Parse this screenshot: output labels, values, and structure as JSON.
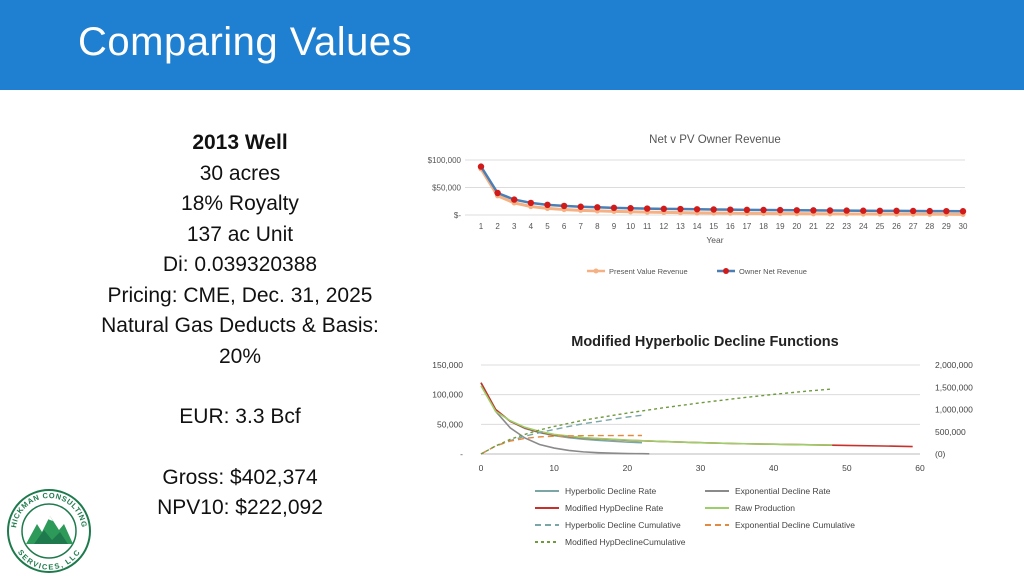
{
  "slide": {
    "title": "Comparing Values"
  },
  "well": {
    "heading": "2013 Well",
    "lines": [
      "30 acres",
      "18% Royalty",
      "137 ac Unit",
      "Di: 0.039320388",
      "Pricing: CME, Dec. 31, 2025",
      "Natural Gas Deducts & Basis:",
      "20%"
    ],
    "eur": "EUR: 3.3 Bcf",
    "gross": "Gross: $402,374",
    "npv": "NPV10: $222,092"
  },
  "logo": {
    "text_top": "HICKMAN CONSULTING",
    "text_bottom": "SERVICES, LLC"
  },
  "colors": {
    "banner": "#1f7fd1",
    "pv": "#f5b183",
    "owner_line": "#4a7eb5",
    "owner_marker": "#d11a1a"
  },
  "chart_data": [
    {
      "type": "line",
      "title": "Net v PV Owner Revenue",
      "xlabel": "Year",
      "ylabel": "",
      "x": [
        1,
        2,
        3,
        4,
        5,
        6,
        7,
        8,
        9,
        10,
        11,
        12,
        13,
        14,
        15,
        16,
        17,
        18,
        19,
        20,
        21,
        22,
        23,
        24,
        25,
        26,
        27,
        28,
        29,
        30
      ],
      "yticks": [
        "$100,000",
        "$50,000",
        "$-"
      ],
      "ylim": [
        0,
        100000
      ],
      "grid": true,
      "legend": "bottom",
      "series": [
        {
          "name": "Present Value Revenue",
          "values": [
            84000,
            35000,
            22000,
            15500,
            12000,
            10000,
            8500,
            7400,
            6500,
            5800,
            5200,
            4700,
            4300,
            3900,
            3600,
            3300,
            3000,
            2800,
            2600,
            2400,
            2200,
            2100,
            1900,
            1800,
            1700,
            1600,
            1500,
            1400,
            1300,
            1200
          ]
        },
        {
          "name": "Owner Net Revenue",
          "values": [
            88000,
            40000,
            28000,
            22000,
            18500,
            16500,
            15000,
            14000,
            13000,
            12300,
            11700,
            11200,
            10800,
            10400,
            10000,
            9700,
            9400,
            9100,
            8900,
            8600,
            8400,
            8200,
            8000,
            7800,
            7600,
            7500,
            7300,
            7100,
            7000,
            6800
          ]
        }
      ]
    },
    {
      "type": "line",
      "title": "Modified Hyperbolic Decline Functions",
      "xlabel": "",
      "ylabel": "",
      "xticks": [
        "0",
        "10",
        "20",
        "30",
        "40",
        "50",
        "60"
      ],
      "xlim": [
        0,
        60
      ],
      "yticks_left": [
        "150,000",
        "100,000",
        "50,000",
        "-"
      ],
      "ylim_left": [
        0,
        150000
      ],
      "yticks_right": [
        "2,000,000",
        "1,500,000",
        "1,000,000",
        "500,000",
        "(0)"
      ],
      "ylim_right": [
        0,
        2000000
      ],
      "grid": true,
      "legend": "bottom",
      "series": [
        {
          "name": "Hyperbolic Decline Rate",
          "axis": "left",
          "x": [
            0,
            2,
            4,
            6,
            8,
            10,
            12,
            14,
            16,
            18,
            20,
            22
          ],
          "values": [
            120000,
            75000,
            55000,
            43000,
            36000,
            31000,
            27500,
            25000,
            23000,
            21500,
            20000,
            19000
          ]
        },
        {
          "name": "Exponential Decline Rate",
          "axis": "left",
          "x": [
            0,
            2,
            4,
            6,
            8,
            10,
            12,
            14,
            16,
            18,
            20,
            22,
            23
          ],
          "values": [
            120000,
            72000,
            44000,
            27000,
            16000,
            10000,
            6000,
            3600,
            2200,
            1300,
            800,
            500,
            400
          ]
        },
        {
          "name": "Modified HypDecline Rate",
          "axis": "left",
          "x": [
            0,
            2,
            4,
            6,
            8,
            10,
            14,
            20,
            25,
            30,
            35,
            40,
            45,
            50,
            55,
            59
          ],
          "values": [
            120000,
            75000,
            55000,
            44000,
            37000,
            32000,
            27000,
            23000,
            21000,
            19000,
            17500,
            16500,
            15500,
            14500,
            13500,
            12500
          ]
        },
        {
          "name": "Raw Production",
          "axis": "left",
          "x": [
            0,
            2,
            4,
            6,
            8,
            10,
            14,
            20,
            25,
            30,
            35,
            40,
            45,
            48
          ],
          "values": [
            115000,
            72000,
            56000,
            45000,
            38000,
            33000,
            27500,
            23500,
            21000,
            19000,
            17500,
            16500,
            15500,
            15000
          ]
        },
        {
          "name": "Hyperbolic Decline Cumulative",
          "axis": "right",
          "x": [
            0,
            2,
            4,
            6,
            8,
            10,
            12,
            14,
            16,
            18,
            20,
            22
          ],
          "values": [
            0,
            180000,
            300000,
            400000,
            480000,
            550000,
            620000,
            680000,
            730000,
            780000,
            830000,
            870000
          ]
        },
        {
          "name": "Exponential Decline  Cumulative",
          "axis": "right",
          "x": [
            0,
            2,
            4,
            6,
            8,
            10,
            12,
            14,
            16,
            18,
            20,
            22
          ],
          "values": [
            0,
            180000,
            290000,
            350000,
            385000,
            400000,
            408000,
            412000,
            414000,
            415000,
            416000,
            416000
          ]
        },
        {
          "name": "Modified HypDeclineCumulative",
          "axis": "right",
          "x": [
            0,
            2,
            4,
            6,
            8,
            10,
            14,
            20,
            25,
            30,
            35,
            40,
            45,
            48
          ],
          "values": [
            0,
            180000,
            330000,
            440000,
            540000,
            620000,
            760000,
            920000,
            1040000,
            1150000,
            1250000,
            1340000,
            1420000,
            1460000
          ]
        }
      ]
    }
  ]
}
